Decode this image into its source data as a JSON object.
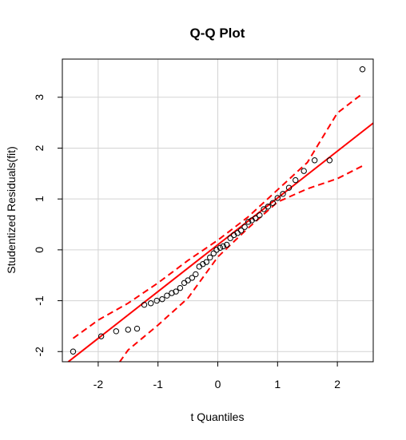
{
  "chart_data": {
    "type": "scatter",
    "title": "Q-Q Plot",
    "xlabel": "t Quantiles",
    "ylabel": "Studentized Residuals(fit)",
    "xlim": [
      -2.6,
      2.6
    ],
    "ylim": [
      -2.2,
      3.75
    ],
    "grid": true,
    "xticks": [
      -2,
      -1,
      0,
      1,
      2
    ],
    "xtick_labels": [
      "-2",
      "-1",
      "0",
      "1",
      "2"
    ],
    "yticks": [
      -2,
      -1,
      0,
      1,
      2,
      3
    ],
    "ytick_labels": [
      "-2",
      "-1",
      "0",
      "1",
      "2",
      "3"
    ],
    "points": {
      "x": [
        -2.42,
        -1.95,
        -1.7,
        -1.5,
        -1.35,
        -1.23,
        -1.12,
        -1.02,
        -0.93,
        -0.85,
        -0.77,
        -0.7,
        -0.63,
        -0.56,
        -0.5,
        -0.43,
        -0.37,
        -0.31,
        -0.25,
        -0.19,
        -0.13,
        -0.07,
        -0.02,
        0.04,
        0.09,
        0.15,
        0.21,
        0.27,
        0.33,
        0.39,
        0.45,
        0.51,
        0.57,
        0.63,
        0.7,
        0.77,
        0.84,
        0.92,
        1.0,
        1.09,
        1.19,
        1.3,
        1.44,
        1.62,
        1.87,
        2.42
      ],
      "y": [
        -2.0,
        -1.7,
        -1.6,
        -1.57,
        -1.55,
        -1.08,
        -1.05,
        -1.0,
        -0.97,
        -0.9,
        -0.85,
        -0.82,
        -0.75,
        -0.65,
        -0.6,
        -0.55,
        -0.48,
        -0.33,
        -0.28,
        -0.24,
        -0.15,
        -0.07,
        0.0,
        0.04,
        0.07,
        0.1,
        0.23,
        0.29,
        0.33,
        0.38,
        0.45,
        0.55,
        0.58,
        0.62,
        0.68,
        0.8,
        0.85,
        0.92,
        1.02,
        1.1,
        1.22,
        1.37,
        1.55,
        1.76,
        1.76,
        3.55
      ]
    },
    "reference_line": {
      "intercept": 0.1,
      "slope": 0.92,
      "color": "#ff0000"
    },
    "envelope": {
      "color": "#ff0000",
      "x": [
        -2.42,
        -2.0,
        -1.5,
        -1.0,
        -0.5,
        0.0,
        0.5,
        1.0,
        1.5,
        2.0,
        2.42
      ],
      "upper": [
        -1.74,
        -1.38,
        -1.05,
        -0.65,
        -0.21,
        0.19,
        0.64,
        1.18,
        1.72,
        2.69,
        3.07
      ],
      "lower": [
        -3.3,
        -2.8,
        -1.97,
        -1.48,
        -0.95,
        -0.14,
        0.42,
        0.94,
        1.2,
        1.4,
        1.65
      ]
    },
    "point_color": "#000000"
  }
}
